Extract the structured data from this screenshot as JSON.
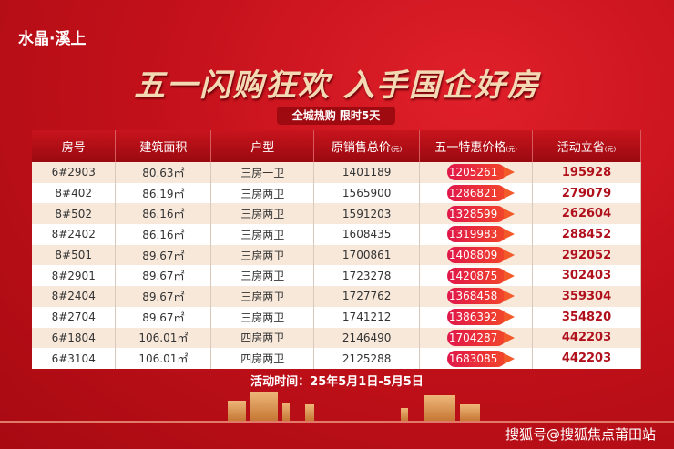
{
  "brand": "水晶·溪上",
  "headline": "五一闪购狂欢 入手国企好房",
  "subtitle": "全城热购 限时5天",
  "table": {
    "headers": [
      "房号",
      "建筑面积",
      "户型",
      "原销售总价",
      "五一特惠价格",
      "活动立省"
    ],
    "unit": "(元)",
    "rows": [
      [
        "6#2903",
        "80.63㎡",
        "三房一卫",
        "1401189",
        "1205261",
        "195928"
      ],
      [
        "8#402",
        "86.19㎡",
        "三房两卫",
        "1565900",
        "1286821",
        "279079"
      ],
      [
        "8#502",
        "86.16㎡",
        "三房两卫",
        "1591203",
        "1328599",
        "262604"
      ],
      [
        "8#2402",
        "86.16㎡",
        "三房两卫",
        "1608435",
        "1319983",
        "288452"
      ],
      [
        "8#501",
        "89.67㎡",
        "三房两卫",
        "1700861",
        "1408809",
        "292052"
      ],
      [
        "8#2901",
        "89.67㎡",
        "三房两卫",
        "1723278",
        "1420875",
        "302403"
      ],
      [
        "8#2404",
        "89.67㎡",
        "三房两卫",
        "1727762",
        "1368458",
        "359304"
      ],
      [
        "8#2704",
        "89.67㎡",
        "三房两卫",
        "1741212",
        "1386392",
        "354820"
      ],
      [
        "6#1804",
        "106.01㎡",
        "四房两卫",
        "2146490",
        "1704287",
        "442203"
      ],
      [
        "6#3104",
        "106.01㎡",
        "四房两卫",
        "2125288",
        "1683085",
        "442203"
      ]
    ]
  },
  "activity_time": "活动时间：25年5月1日-5月5日",
  "watermark": "搜狐号@搜狐焦点莆田站",
  "colors": {
    "background": "#c5101a",
    "save": "#b0101c",
    "pill": "#e0174a"
  }
}
